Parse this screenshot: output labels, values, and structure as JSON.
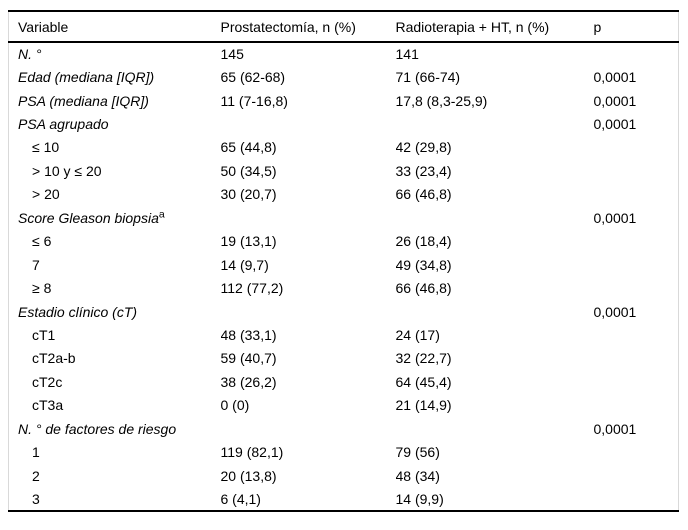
{
  "colors": {
    "background": "#ffffff",
    "text": "#000000",
    "rule_strong": "#000000",
    "rule_side": "#d9d9d9"
  },
  "table": {
    "header": {
      "variable": "Variable",
      "prostatectomia": "Prostatectomía, n (%)",
      "radioterapia": "Radioterapia + HT, n (%)",
      "p": "p"
    },
    "rows": [
      {
        "variable": "N. °",
        "italic": true,
        "prostatectomia": "145",
        "radioterapia": "141",
        "p": ""
      },
      {
        "variable": "Edad (mediana [IQR])",
        "italic": true,
        "prostatectomia": "65 (62-68)",
        "radioterapia": "71 (66-74)",
        "p": "0,0001"
      },
      {
        "variable": "PSA (mediana [IQR])",
        "italic": true,
        "prostatectomia": "11 (7-16,8)",
        "radioterapia": "17,8 (8,3-25,9)",
        "p": "0,0001"
      },
      {
        "variable": "PSA agrupado",
        "italic": true,
        "prostatectomia": "",
        "radioterapia": "",
        "p": "0,0001"
      },
      {
        "variable": "≤ 10",
        "indent": true,
        "prostatectomia": "65 (44,8)",
        "radioterapia": "42 (29,8)",
        "p": ""
      },
      {
        "variable": "> 10 y ≤ 20",
        "indent": true,
        "prostatectomia": "50 (34,5)",
        "radioterapia": "33 (23,4)",
        "p": ""
      },
      {
        "variable": "> 20",
        "indent": true,
        "prostatectomia": "30 (20,7)",
        "radioterapia": "66 (46,8)",
        "p": ""
      },
      {
        "variable": "Score Gleason biopsia",
        "italic": true,
        "sup": "a",
        "prostatectomia": "",
        "radioterapia": "",
        "p": "0,0001"
      },
      {
        "variable": "≤ 6",
        "indent": true,
        "prostatectomia": "19 (13,1)",
        "radioterapia": "26 (18,4)",
        "p": ""
      },
      {
        "variable": "7",
        "indent": true,
        "prostatectomia": "14 (9,7)",
        "radioterapia": "49 (34,8)",
        "p": ""
      },
      {
        "variable": "≥ 8",
        "indent": true,
        "prostatectomia": "112 (77,2)",
        "radioterapia": "66 (46,8)",
        "p": ""
      },
      {
        "variable": "Estadio clínico (cT)",
        "italic": true,
        "prostatectomia": "",
        "radioterapia": "",
        "p": "0,0001"
      },
      {
        "variable": "cT1",
        "indent": true,
        "prostatectomia": "48 (33,1)",
        "radioterapia": "24 (17)",
        "p": ""
      },
      {
        "variable": "cT2a-b",
        "indent": true,
        "prostatectomia": "59 (40,7)",
        "radioterapia": "32 (22,7)",
        "p": ""
      },
      {
        "variable": "cT2c",
        "indent": true,
        "prostatectomia": "38 (26,2)",
        "radioterapia": "64 (45,4)",
        "p": ""
      },
      {
        "variable": "cT3a",
        "indent": true,
        "prostatectomia": "0 (0)",
        "radioterapia": "21 (14,9)",
        "p": ""
      },
      {
        "variable": "N. ° de factores de riesgo",
        "italic": true,
        "prostatectomia": "",
        "radioterapia": "",
        "p": "0,0001"
      },
      {
        "variable": "1",
        "indent": true,
        "prostatectomia": "119 (82,1)",
        "radioterapia": "79 (56)",
        "p": ""
      },
      {
        "variable": "2",
        "indent": true,
        "prostatectomia": "20 (13,8)",
        "radioterapia": "48 (34)",
        "p": ""
      },
      {
        "variable": "3",
        "indent": true,
        "prostatectomia": "6 (4,1)",
        "radioterapia": "14 (9,9)",
        "p": ""
      }
    ]
  }
}
